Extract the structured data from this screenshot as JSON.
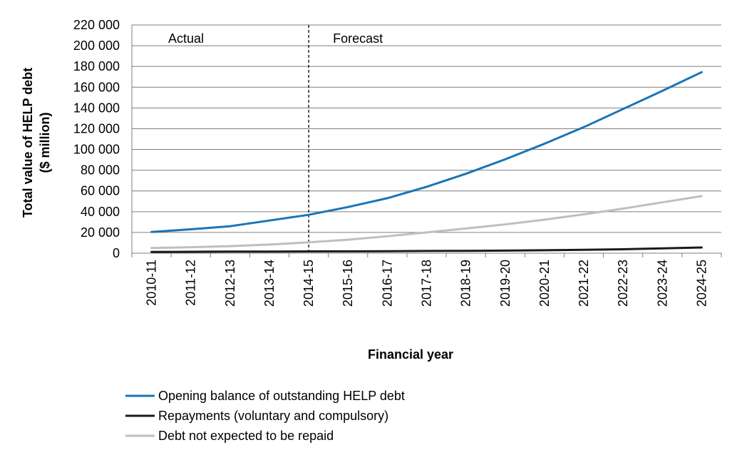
{
  "chart_data": {
    "type": "line",
    "categories": [
      "2010-11",
      "2011-12",
      "2012-13",
      "2013-14",
      "2014-15",
      "2015-16",
      "2016-17",
      "2017-18",
      "2018-19",
      "2019-20",
      "2020-21",
      "2021-22",
      "2022-23",
      "2023-24",
      "2024-25"
    ],
    "xlabel": "Financial year",
    "ylabel_lines": [
      "Total value of HELP debt",
      "($ million)"
    ],
    "ylim": [
      0,
      220000
    ],
    "yticks": [
      0,
      20000,
      40000,
      60000,
      80000,
      100000,
      120000,
      140000,
      160000,
      180000,
      200000,
      220000
    ],
    "ytick_labels": [
      "0",
      "20 000",
      "40 000",
      "60 000",
      "80 000",
      "100 000",
      "120 000",
      "140 000",
      "160 000",
      "180 000",
      "200 000",
      "220 000"
    ],
    "grid": true,
    "divider_after_category": "2014-15",
    "region_labels": {
      "left": "Actual",
      "right": "Forecast"
    },
    "legend_position": "bottom",
    "series": [
      {
        "name": "Opening balance of outstanding HELP debt",
        "color": "#1a75b5",
        "values": [
          20500,
          23000,
          26000,
          31500,
          37000,
          44500,
          53000,
          64000,
          76500,
          90500,
          105500,
          121500,
          139000,
          156500,
          174500
        ]
      },
      {
        "name": "Repayments (voluntary and compulsory)",
        "color": "#1a1a1a",
        "values": [
          1200,
          1400,
          1500,
          1600,
          1700,
          1800,
          1900,
          2100,
          2300,
          2500,
          2800,
          3200,
          3800,
          4600,
          5500
        ]
      },
      {
        "name": "Debt not expected to be repaid",
        "color": "#bfbfbf",
        "values": [
          5000,
          5800,
          6800,
          8300,
          10500,
          13000,
          16300,
          20000,
          23800,
          27800,
          32300,
          37500,
          43000,
          49000,
          55000
        ]
      }
    ]
  }
}
